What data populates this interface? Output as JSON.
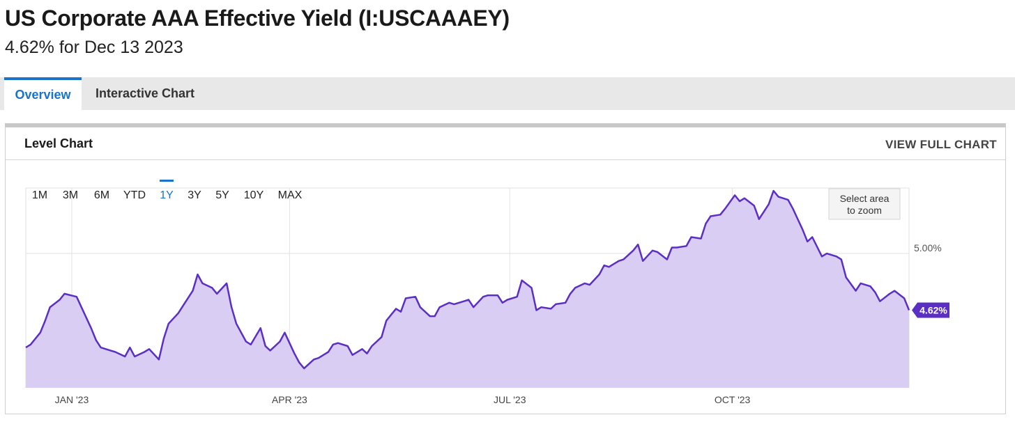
{
  "header": {
    "title": "US Corporate AAA Effective Yield (I:USCAAAEY)",
    "subtitle": "4.62% for Dec 13 2023"
  },
  "tabs": [
    {
      "label": "Overview",
      "active": true
    },
    {
      "label": "Interactive Chart",
      "active": false
    }
  ],
  "panel": {
    "title": "Level Chart",
    "link": "VIEW FULL CHART"
  },
  "ranges": [
    {
      "label": "1M",
      "active": false
    },
    {
      "label": "3M",
      "active": false
    },
    {
      "label": "6M",
      "active": false
    },
    {
      "label": "YTD",
      "active": false
    },
    {
      "label": "1Y",
      "active": true
    },
    {
      "label": "3Y",
      "active": false
    },
    {
      "label": "5Y",
      "active": false
    },
    {
      "label": "10Y",
      "active": false
    },
    {
      "label": "MAX",
      "active": false
    }
  ],
  "zoom_button": {
    "line1": "Select area",
    "line2": "to zoom"
  },
  "chart_data": {
    "type": "area",
    "title": "",
    "xlabel": "",
    "ylabel": "",
    "x_range": [
      "2022-12-13",
      "2023-12-13"
    ],
    "ylim": [
      4.1,
      5.49
    ],
    "x_ticks": [
      {
        "label": "JAN '23",
        "date": "2023-01-01"
      },
      {
        "label": "APR '23",
        "date": "2023-04-01"
      },
      {
        "label": "JUL '23",
        "date": "2023-07-01"
      },
      {
        "label": "OCT '23",
        "date": "2023-10-01"
      }
    ],
    "y_ticks": [
      {
        "label": "5.00%",
        "value": 5.0
      }
    ],
    "last_value_label": "4.62%",
    "grid": true,
    "colors": {
      "line": "#5b2fc4",
      "fill": "#d9cdf3",
      "badge": "#5b2fc4",
      "active_tab": "#1a73c8"
    },
    "series": [
      {
        "x": [
          "2022-12-13",
          "2022-12-15",
          "2022-12-19",
          "2022-12-21",
          "2022-12-23",
          "2022-12-27",
          "2022-12-29",
          "2023-01-03",
          "2023-01-05",
          "2023-01-09",
          "2023-01-11",
          "2023-01-13",
          "2023-01-17",
          "2023-01-19",
          "2023-01-23",
          "2023-01-25",
          "2023-01-27",
          "2023-01-31",
          "2023-02-02",
          "2023-02-06",
          "2023-02-08",
          "2023-02-10",
          "2023-02-14",
          "2023-02-16",
          "2023-02-20",
          "2023-02-22",
          "2023-02-24",
          "2023-02-28",
          "2023-03-02",
          "2023-03-06",
          "2023-03-08",
          "2023-03-10",
          "2023-03-14",
          "2023-03-16",
          "2023-03-20",
          "2023-03-22",
          "2023-03-24",
          "2023-03-28",
          "2023-03-30",
          "2023-04-03",
          "2023-04-05",
          "2023-04-07",
          "2023-04-11",
          "2023-04-13",
          "2023-04-17",
          "2023-04-19",
          "2023-04-21",
          "2023-04-25",
          "2023-04-27",
          "2023-05-01",
          "2023-05-03",
          "2023-05-05",
          "2023-05-09",
          "2023-05-11",
          "2023-05-15",
          "2023-05-17",
          "2023-05-19",
          "2023-05-23",
          "2023-05-25",
          "2023-05-29",
          "2023-05-31",
          "2023-06-02",
          "2023-06-06",
          "2023-06-08",
          "2023-06-12",
          "2023-06-14",
          "2023-06-16",
          "2023-06-20",
          "2023-06-22",
          "2023-06-26",
          "2023-06-28",
          "2023-06-30",
          "2023-07-04",
          "2023-07-06",
          "2023-07-10",
          "2023-07-12",
          "2023-07-14",
          "2023-07-18",
          "2023-07-20",
          "2023-07-24",
          "2023-07-26",
          "2023-07-28",
          "2023-08-01",
          "2023-08-03",
          "2023-08-07",
          "2023-08-09",
          "2023-08-11",
          "2023-08-15",
          "2023-08-17",
          "2023-08-21",
          "2023-08-23",
          "2023-08-25",
          "2023-08-29",
          "2023-08-31",
          "2023-09-04",
          "2023-09-06",
          "2023-09-08",
          "2023-09-12",
          "2023-09-14",
          "2023-09-18",
          "2023-09-20",
          "2023-09-22",
          "2023-09-26",
          "2023-09-28",
          "2023-10-02",
          "2023-10-04",
          "2023-10-06",
          "2023-10-10",
          "2023-10-12",
          "2023-10-16",
          "2023-10-18",
          "2023-10-20",
          "2023-10-24",
          "2023-10-26",
          "2023-10-30",
          "2023-11-01",
          "2023-11-03",
          "2023-11-07",
          "2023-11-09",
          "2023-11-13",
          "2023-11-15",
          "2023-11-17",
          "2023-11-21",
          "2023-11-23",
          "2023-11-27",
          "2023-11-29",
          "2023-12-01",
          "2023-12-05",
          "2023-12-07",
          "2023-12-11",
          "2023-12-13"
        ],
        "y": [
          4.37,
          4.39,
          4.47,
          4.55,
          4.64,
          4.69,
          4.73,
          4.71,
          4.64,
          4.5,
          4.42,
          4.37,
          4.35,
          4.34,
          4.31,
          4.37,
          4.31,
          4.34,
          4.36,
          4.29,
          4.43,
          4.53,
          4.6,
          4.65,
          4.75,
          4.86,
          4.8,
          4.77,
          4.73,
          4.8,
          4.64,
          4.53,
          4.41,
          4.39,
          4.5,
          4.38,
          4.35,
          4.41,
          4.47,
          4.33,
          4.27,
          4.23,
          4.29,
          4.3,
          4.34,
          4.39,
          4.4,
          4.38,
          4.32,
          4.36,
          4.33,
          4.38,
          4.44,
          4.55,
          4.63,
          4.61,
          4.7,
          4.71,
          4.64,
          4.58,
          4.58,
          4.64,
          4.67,
          4.66,
          4.68,
          4.69,
          4.64,
          4.71,
          4.72,
          4.72,
          4.67,
          4.69,
          4.71,
          4.82,
          4.77,
          4.62,
          4.64,
          4.63,
          4.66,
          4.67,
          4.73,
          4.77,
          4.8,
          4.79,
          4.86,
          4.92,
          4.91,
          4.95,
          4.96,
          5.02,
          5.06,
          4.95,
          5.02,
          5.01,
          4.96,
          5.04,
          5.04,
          5.05,
          5.11,
          5.1,
          5.2,
          5.25,
          5.26,
          5.3,
          5.39,
          5.35,
          5.37,
          5.32,
          5.23,
          5.33,
          5.42,
          5.38,
          5.36,
          5.3,
          5.16,
          5.08,
          5.11,
          4.98,
          5.0,
          4.98,
          4.96,
          4.84,
          4.75,
          4.8,
          4.78,
          4.74,
          4.68,
          4.73,
          4.75,
          4.7,
          4.62
        ]
      }
    ]
  }
}
